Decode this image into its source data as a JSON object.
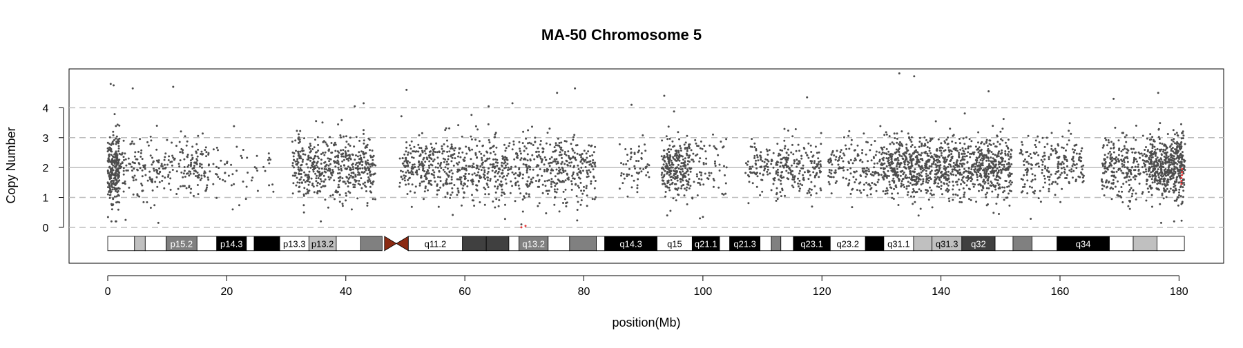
{
  "chart_data": {
    "type": "scatter",
    "title": "MA-50  Chromosome 5",
    "xlabel": "position(Mb)",
    "ylabel": "Copy Number",
    "xlim": [
      -6.5,
      187.5
    ],
    "ylim": [
      -1.2,
      5.3
    ],
    "x_ticks": [
      0,
      20,
      40,
      60,
      80,
      100,
      120,
      140,
      160,
      180
    ],
    "y_ticks": [
      0,
      1,
      2,
      3,
      4
    ],
    "grid": "dashed horizontal lines at y = 1, 3, 4 and 0; solid line at y = 2",
    "legend": "none",
    "colors": {
      "points": "#4d4d4d",
      "highlight": "#e8393a",
      "centromere": "#8b2a12",
      "grid": "#bdbdbd"
    },
    "point_density": [
      {
        "start": 0.0,
        "end": 2.0,
        "n": 260,
        "sd": 0.6
      },
      {
        "start": 2.0,
        "end": 13.0,
        "n": 180,
        "sd": 0.5
      },
      {
        "start": 13.0,
        "end": 17.0,
        "n": 90,
        "sd": 0.45
      },
      {
        "start": 17.0,
        "end": 28.0,
        "n": 55,
        "sd": 0.5
      },
      {
        "start": 31.0,
        "end": 45.0,
        "n": 520,
        "sd": 0.5
      },
      {
        "start": 49.0,
        "end": 56.0,
        "n": 200,
        "sd": 0.5
      },
      {
        "start": 56.0,
        "end": 82.0,
        "n": 720,
        "sd": 0.55
      },
      {
        "start": 86.0,
        "end": 91.0,
        "n": 60,
        "sd": 0.45
      },
      {
        "start": 93.0,
        "end": 98.0,
        "n": 260,
        "sd": 0.5
      },
      {
        "start": 98.0,
        "end": 104.0,
        "n": 70,
        "sd": 0.5
      },
      {
        "start": 107.0,
        "end": 120.0,
        "n": 280,
        "sd": 0.45
      },
      {
        "start": 121.0,
        "end": 130.0,
        "n": 170,
        "sd": 0.5
      },
      {
        "start": 130.0,
        "end": 152.0,
        "n": 1100,
        "sd": 0.5
      },
      {
        "start": 153.0,
        "end": 164.0,
        "n": 220,
        "sd": 0.5
      },
      {
        "start": 167.0,
        "end": 175.0,
        "n": 260,
        "sd": 0.5
      },
      {
        "start": 175.0,
        "end": 181.0,
        "n": 480,
        "sd": 0.55
      }
    ],
    "point_extras": [
      {
        "x": 0.5,
        "y": 4.8
      },
      {
        "x": 1.0,
        "y": 4.75
      },
      {
        "x": 4.2,
        "y": 4.65
      },
      {
        "x": 11.0,
        "y": 4.7
      },
      {
        "x": 50.2,
        "y": 4.6
      },
      {
        "x": 75.5,
        "y": 4.5
      },
      {
        "x": 78.5,
        "y": 4.65
      },
      {
        "x": 93.5,
        "y": 4.4
      },
      {
        "x": 133.0,
        "y": 5.15
      },
      {
        "x": 135.5,
        "y": 5.05
      },
      {
        "x": 148.0,
        "y": 4.55
      },
      {
        "x": 176.5,
        "y": 4.5
      },
      {
        "x": 41.5,
        "y": 4.05
      },
      {
        "x": 43.0,
        "y": 4.15
      },
      {
        "x": 64.0,
        "y": 4.05
      },
      {
        "x": 68.0,
        "y": 4.15
      },
      {
        "x": 88.0,
        "y": 4.1
      },
      {
        "x": 117.5,
        "y": 4.35
      },
      {
        "x": 169.0,
        "y": 4.3
      },
      {
        "x": 3.0,
        "y": 0.25
      },
      {
        "x": 8.5,
        "y": 0.15
      },
      {
        "x": 21.0,
        "y": 0.6
      },
      {
        "x": 94.0,
        "y": 0.4
      },
      {
        "x": 99.5,
        "y": 0.3
      },
      {
        "x": 100.0,
        "y": 0.35
      },
      {
        "x": 69.5,
        "y": 0.1
      },
      {
        "x": 177.0,
        "y": 0.15
      },
      {
        "x": 41.0,
        "y": 0.6
      }
    ],
    "highlighted_points": [
      {
        "x": 69.5,
        "y": 0.0
      },
      {
        "x": 70.2,
        "y": 0.05
      },
      {
        "x": 180.4,
        "y": 1.55
      },
      {
        "x": 180.4,
        "y": 1.65
      },
      {
        "x": 180.5,
        "y": 1.75
      },
      {
        "x": 180.5,
        "y": 1.85
      },
      {
        "x": 180.4,
        "y": 1.45
      },
      {
        "x": 180.5,
        "y": 1.95
      }
    ],
    "ideogram": {
      "centromere": [
        46.5,
        50.5
      ],
      "bands": [
        {
          "start": 0.0,
          "end": 4.5,
          "label": "",
          "color": "#ffffff",
          "text": "#000000"
        },
        {
          "start": 4.5,
          "end": 6.3,
          "label": "",
          "color": "#c0c0c0",
          "text": "#000000"
        },
        {
          "start": 6.3,
          "end": 9.8,
          "label": "",
          "color": "#ffffff",
          "text": "#000000"
        },
        {
          "start": 9.8,
          "end": 15.0,
          "label": "p15.2",
          "color": "#808080",
          "text": "#ffffff"
        },
        {
          "start": 15.0,
          "end": 18.3,
          "label": "",
          "color": "#ffffff",
          "text": "#000000"
        },
        {
          "start": 18.3,
          "end": 23.3,
          "label": "p14.3",
          "color": "#000000",
          "text": "#ffffff"
        },
        {
          "start": 23.3,
          "end": 24.6,
          "label": "",
          "color": "#ffffff",
          "text": "#000000"
        },
        {
          "start": 24.6,
          "end": 28.9,
          "label": "",
          "color": "#000000",
          "text": "#ffffff"
        },
        {
          "start": 28.9,
          "end": 33.8,
          "label": "p13.3",
          "color": "#ffffff",
          "text": "#000000"
        },
        {
          "start": 33.8,
          "end": 38.4,
          "label": "p13.2",
          "color": "#c0c0c0",
          "text": "#000000"
        },
        {
          "start": 38.4,
          "end": 42.5,
          "label": "",
          "color": "#ffffff",
          "text": "#000000"
        },
        {
          "start": 42.5,
          "end": 46.1,
          "label": "",
          "color": "#808080",
          "text": "#ffffff"
        },
        {
          "start": 50.5,
          "end": 59.6,
          "label": "q11.2",
          "color": "#ffffff",
          "text": "#000000"
        },
        {
          "start": 59.6,
          "end": 63.6,
          "label": "",
          "color": "#404040",
          "text": "#ffffff"
        },
        {
          "start": 63.6,
          "end": 67.4,
          "label": "",
          "color": "#404040",
          "text": "#ffffff"
        },
        {
          "start": 67.4,
          "end": 69.1,
          "label": "",
          "color": "#ffffff",
          "text": "#000000"
        },
        {
          "start": 69.1,
          "end": 74.0,
          "label": "q13.2",
          "color": "#808080",
          "text": "#ffffff"
        },
        {
          "start": 74.0,
          "end": 77.6,
          "label": "",
          "color": "#ffffff",
          "text": "#000000"
        },
        {
          "start": 77.6,
          "end": 82.1,
          "label": "",
          "color": "#808080",
          "text": "#ffffff"
        },
        {
          "start": 82.1,
          "end": 83.5,
          "label": "",
          "color": "#ffffff",
          "text": "#000000"
        },
        {
          "start": 83.5,
          "end": 92.3,
          "label": "q14.3",
          "color": "#000000",
          "text": "#ffffff"
        },
        {
          "start": 92.3,
          "end": 98.2,
          "label": "q15",
          "color": "#ffffff",
          "text": "#000000"
        },
        {
          "start": 98.2,
          "end": 102.8,
          "label": "q21.1",
          "color": "#000000",
          "text": "#ffffff"
        },
        {
          "start": 102.8,
          "end": 104.5,
          "label": "",
          "color": "#ffffff",
          "text": "#000000"
        },
        {
          "start": 104.5,
          "end": 109.6,
          "label": "q21.3",
          "color": "#000000",
          "text": "#ffffff"
        },
        {
          "start": 109.6,
          "end": 111.5,
          "label": "",
          "color": "#ffffff",
          "text": "#000000"
        },
        {
          "start": 111.5,
          "end": 113.1,
          "label": "",
          "color": "#808080",
          "text": "#ffffff"
        },
        {
          "start": 113.1,
          "end": 115.2,
          "label": "",
          "color": "#ffffff",
          "text": "#000000"
        },
        {
          "start": 115.2,
          "end": 121.4,
          "label": "q23.1",
          "color": "#000000",
          "text": "#ffffff"
        },
        {
          "start": 121.4,
          "end": 127.3,
          "label": "q23.2",
          "color": "#ffffff",
          "text": "#000000"
        },
        {
          "start": 127.3,
          "end": 130.4,
          "label": "",
          "color": "#000000",
          "text": "#ffffff"
        },
        {
          "start": 130.4,
          "end": 135.4,
          "label": "q31.1",
          "color": "#ffffff",
          "text": "#000000"
        },
        {
          "start": 135.4,
          "end": 138.5,
          "label": "",
          "color": "#c0c0c0",
          "text": "#000000"
        },
        {
          "start": 138.5,
          "end": 143.5,
          "label": "q31.3",
          "color": "#c0c0c0",
          "text": "#000000"
        },
        {
          "start": 143.5,
          "end": 149.1,
          "label": "q32",
          "color": "#404040",
          "text": "#ffffff"
        },
        {
          "start": 149.1,
          "end": 152.1,
          "label": "",
          "color": "#ffffff",
          "text": "#000000"
        },
        {
          "start": 152.1,
          "end": 155.3,
          "label": "",
          "color": "#808080",
          "text": "#ffffff"
        },
        {
          "start": 155.3,
          "end": 159.5,
          "label": "",
          "color": "#ffffff",
          "text": "#000000"
        },
        {
          "start": 159.5,
          "end": 168.3,
          "label": "q34",
          "color": "#000000",
          "text": "#ffffff"
        },
        {
          "start": 168.3,
          "end": 172.3,
          "label": "",
          "color": "#ffffff",
          "text": "#000000"
        },
        {
          "start": 172.3,
          "end": 176.3,
          "label": "",
          "color": "#c0c0c0",
          "text": "#000000"
        },
        {
          "start": 176.3,
          "end": 180.9,
          "label": "",
          "color": "#ffffff",
          "text": "#000000"
        }
      ]
    }
  }
}
